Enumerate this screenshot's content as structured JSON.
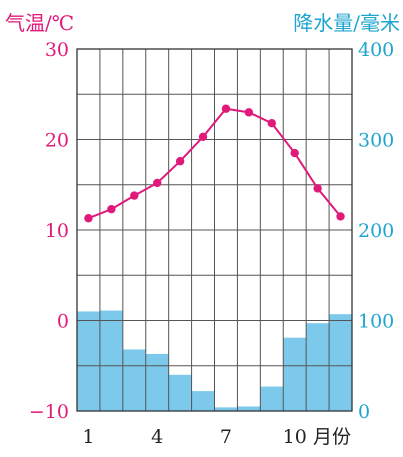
{
  "chart_data": {
    "type": "bar+line",
    "left_axis_title": "气温/℃",
    "right_axis_title": "降水量/毫米",
    "x_unit_label": "月份",
    "months": [
      1,
      2,
      3,
      4,
      5,
      6,
      7,
      8,
      9,
      10,
      11,
      12
    ],
    "x_tick_labels": [
      "1",
      "4",
      "7",
      "10"
    ],
    "x_tick_months": [
      1,
      4,
      7,
      10
    ],
    "temperature": {
      "values": [
        11.3,
        12.3,
        13.8,
        15.2,
        17.6,
        20.3,
        23.4,
        23.0,
        21.8,
        18.5,
        14.6,
        11.5
      ],
      "ylim": [
        -10,
        30
      ],
      "ticks": [
        "30",
        "20",
        "10",
        "0",
        "−10"
      ],
      "tick_values": [
        30,
        20,
        10,
        0,
        -10
      ],
      "color": "#e0197a"
    },
    "precipitation": {
      "values": [
        110,
        111,
        68,
        63,
        40,
        22,
        4,
        5,
        27,
        81,
        97,
        107
      ],
      "ylim": [
        0,
        400
      ],
      "ticks": [
        "400",
        "300",
        "200",
        "100",
        "0"
      ],
      "tick_values": [
        400,
        300,
        200,
        100,
        0
      ],
      "color": "#7cc9ec"
    },
    "grid": true
  }
}
